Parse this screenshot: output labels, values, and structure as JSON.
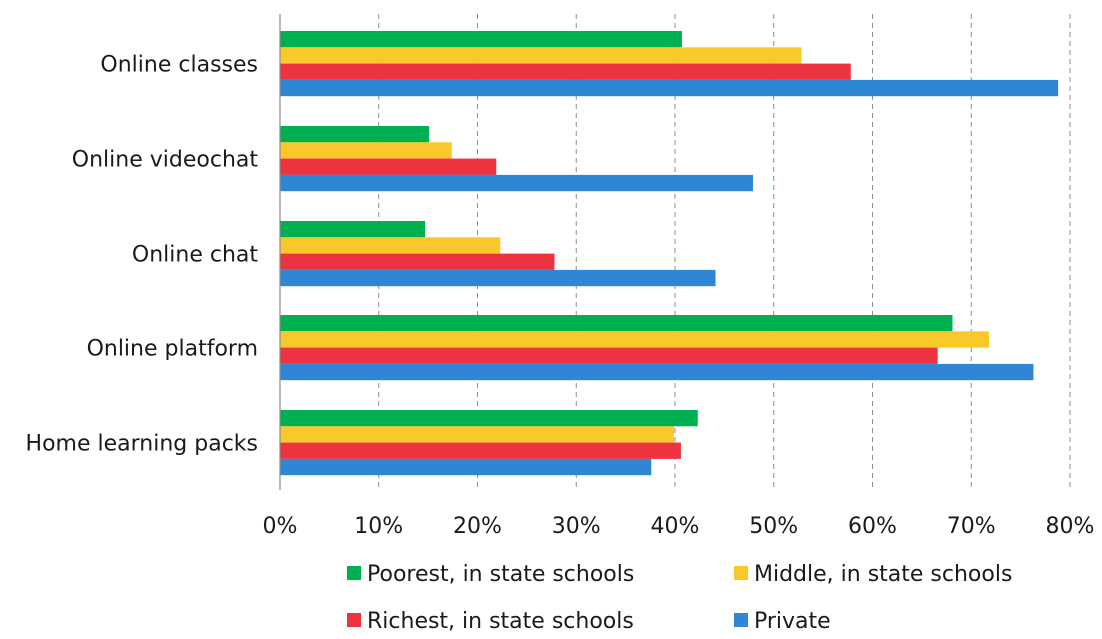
{
  "chart_data": {
    "type": "bar",
    "orientation": "horizontal",
    "categories": [
      "Online classes",
      "Online videochat",
      "Online chat",
      "Online platform",
      "Home learning packs"
    ],
    "series": [
      {
        "name": "Poorest, in state schools",
        "color": "#00b050",
        "values": [
          40.7,
          15.1,
          14.7,
          68.1,
          42.3
        ]
      },
      {
        "name": "Middle, in state schools",
        "color": "#f9c82b",
        "values": [
          52.8,
          17.4,
          22.3,
          71.8,
          39.9
        ]
      },
      {
        "name": "Richest, in state schools",
        "color": "#ee3340",
        "values": [
          57.8,
          21.9,
          27.8,
          66.6,
          40.6
        ]
      },
      {
        "name": "Private",
        "color": "#2e86d4",
        "values": [
          78.8,
          47.9,
          44.1,
          76.3,
          37.6
        ]
      }
    ],
    "xlim": [
      0,
      80
    ],
    "xticks": [
      "0%",
      "10%",
      "20%",
      "30%",
      "40%",
      "50%",
      "60%",
      "70%",
      "80%"
    ],
    "grid": true,
    "legend_position": "bottom"
  }
}
